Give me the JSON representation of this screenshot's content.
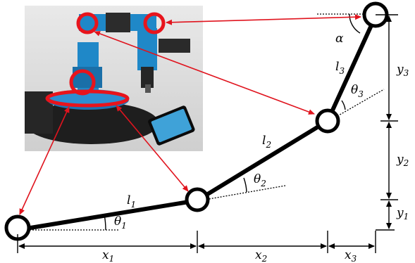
{
  "links": {
    "l1": {
      "sym": "l",
      "sub": "1"
    },
    "l2": {
      "sym": "l",
      "sub": "2"
    },
    "l3": {
      "sym": "l",
      "sub": "3"
    }
  },
  "angles": {
    "theta1": {
      "sym": "θ",
      "sub": "1"
    },
    "theta2": {
      "sym": "θ",
      "sub": "2"
    },
    "theta3": {
      "sym": "θ",
      "sub": "3"
    },
    "alpha": {
      "sym": "α"
    }
  },
  "dimensions": {
    "x1": {
      "sym": "x",
      "sub": "1"
    },
    "x2": {
      "sym": "x",
      "sub": "2"
    },
    "x3": {
      "sym": "x",
      "sub": "3"
    },
    "y1": {
      "sym": "y",
      "sub": "1"
    },
    "y2": {
      "sym": "y",
      "sub": "2"
    },
    "y3": {
      "sym": "y",
      "sub": "3"
    }
  },
  "colors": {
    "link": "#000000",
    "joint": "#000000",
    "annotation_arrow": "#e0141e",
    "photo_highlight": "#e8141c",
    "robot_blue": "#1f88c8"
  }
}
